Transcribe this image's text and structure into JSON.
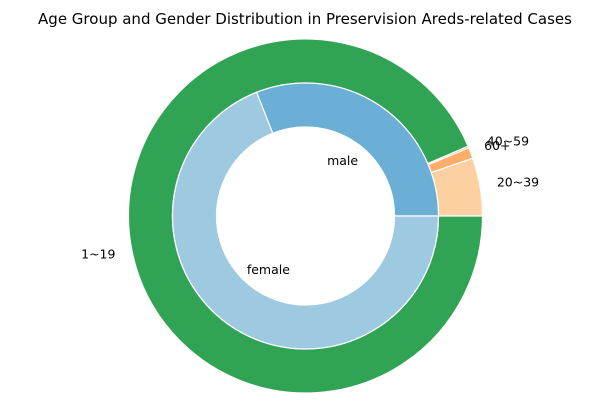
{
  "chart_data": {
    "type": "pie",
    "variant": "nested-donut",
    "title": "Age Group and Gender Distribution in Preservision Areds-related Cases",
    "rings": [
      {
        "ring": "outer",
        "dimension": "age group",
        "categories": [
          "20~39",
          "40~59",
          "60+",
          "1~19"
        ],
        "values": [
          0.053,
          0.01,
          0.0015,
          0.9355
        ],
        "colors": [
          "#fdd0a2",
          "#fdae6b",
          "#fd8d3c",
          "#31a354"
        ]
      },
      {
        "ring": "inner",
        "dimension": "gender",
        "categories": [
          "male",
          "female"
        ],
        "values": [
          0.31,
          0.69
        ],
        "colors": [
          "#6baed6",
          "#9ecae1"
        ]
      }
    ],
    "start_angle_deg": 0,
    "direction": "counterclockwise",
    "wedge_edge_color": "#ffffff",
    "legend": "none",
    "grid": false
  }
}
